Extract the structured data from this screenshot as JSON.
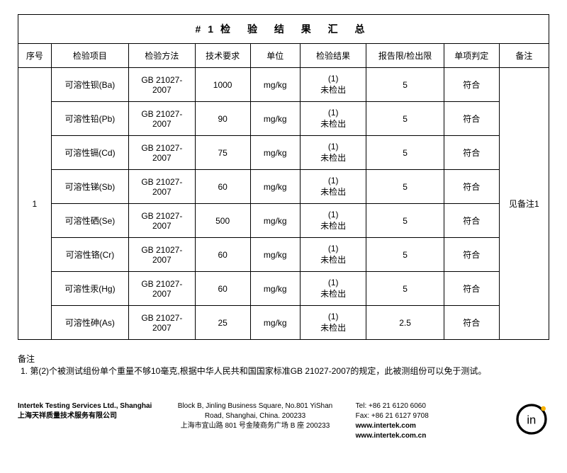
{
  "title": "#1检 验 结 果 汇 总",
  "headers": [
    "序号",
    "检验项目",
    "检验方法",
    "技术要求",
    "单位",
    "检验结果",
    "报告限/检出限",
    "单项判定",
    "备注"
  ],
  "col_widths": [
    "6%",
    "14%",
    "12%",
    "10%",
    "9%",
    "12%",
    "14%",
    "10%",
    "9%"
  ],
  "group": {
    "seq": "1",
    "remark": "见备注1"
  },
  "rows": [
    {
      "item": "可溶性钡(Ba)",
      "method": "GB 21027-2007",
      "spec": "1000",
      "unit": "mg/kg",
      "result": "(1)\n未检出",
      "limit": "5",
      "judge": "符合"
    },
    {
      "item": "可溶性铅(Pb)",
      "method": "GB 21027-2007",
      "spec": "90",
      "unit": "mg/kg",
      "result": "(1)\n未检出",
      "limit": "5",
      "judge": "符合"
    },
    {
      "item": "可溶性镉(Cd)",
      "method": "GB 21027-2007",
      "spec": "75",
      "unit": "mg/kg",
      "result": "(1)\n未检出",
      "limit": "5",
      "judge": "符合"
    },
    {
      "item": "可溶性锑(Sb)",
      "method": "GB 21027-2007",
      "spec": "60",
      "unit": "mg/kg",
      "result": "(1)\n未检出",
      "limit": "5",
      "judge": "符合"
    },
    {
      "item": "可溶性硒(Se)",
      "method": "GB 21027-2007",
      "spec": "500",
      "unit": "mg/kg",
      "result": "(1)\n未检出",
      "limit": "5",
      "judge": "符合"
    },
    {
      "item": "可溶性铬(Cr)",
      "method": "GB 21027-2007",
      "spec": "60",
      "unit": "mg/kg",
      "result": "(1)\n未检出",
      "limit": "5",
      "judge": "符合"
    },
    {
      "item": "可溶性汞(Hg)",
      "method": "GB 21027-2007",
      "spec": "60",
      "unit": "mg/kg",
      "result": "(1)\n未检出",
      "limit": "5",
      "judge": "符合"
    },
    {
      "item": "可溶性砷(As)",
      "method": "GB 21027-2007",
      "spec": "25",
      "unit": "mg/kg",
      "result": "(1)\n未检出",
      "limit": "2.5",
      "judge": "符合"
    }
  ],
  "note_head": "备注",
  "note_body": "1. 第(2)个被测试组份单个重量不够10毫克,根据中华人民共和国国家标准GB 21027-2007的规定，此被测组份可以免于测试。",
  "footer": {
    "left1": "Intertek Testing Services Ltd., Shanghai",
    "left2": "上海天祥质量技术服务有限公司",
    "mid1": "Block B, Jinling Business Square, No.801 YiShan",
    "mid2": "Road, Shanghai, China. 200233",
    "mid3": "上海市宜山路 801 号金陵商务广场 B 座 200233",
    "r1": "Tel: +86 21 6120 6060",
    "r2": "Fax: +86 21 6127 9708",
    "r3": "www.intertek.com",
    "r4": "www.intertek.com.cn"
  }
}
